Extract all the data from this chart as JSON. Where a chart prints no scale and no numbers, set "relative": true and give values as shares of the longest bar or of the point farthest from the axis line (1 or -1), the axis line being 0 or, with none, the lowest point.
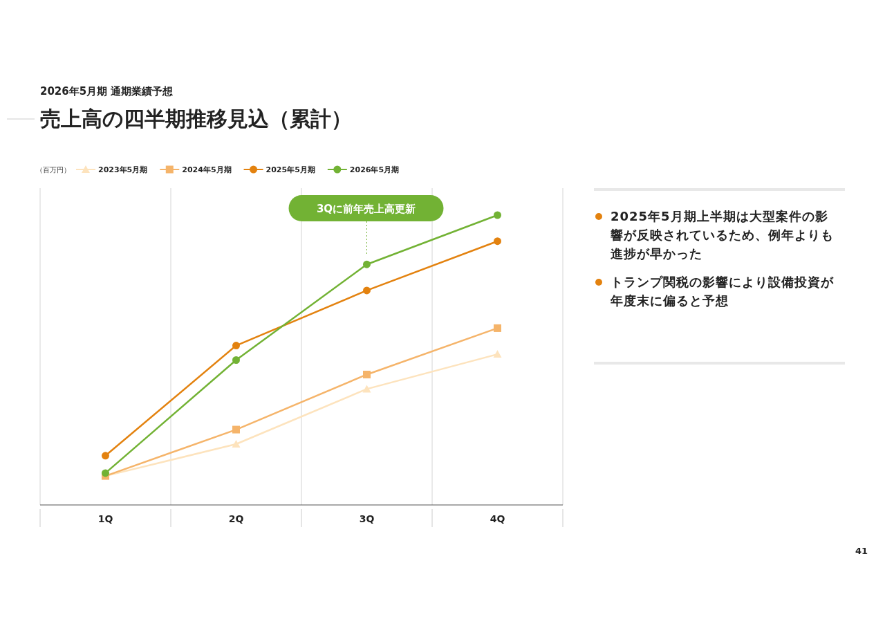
{
  "chart_data": {
    "type": "line",
    "subtitle": "2026年5月期 通期業績予想",
    "title": "売上高の四半期推移見込（累計）",
    "relative": true,
    "categories": [
      "1Q",
      "2Q",
      "3Q",
      "4Q"
    ],
    "series": [
      {
        "name": "2023年5月期",
        "color": "#fde3bd",
        "marker": "triangle",
        "values": [
          0.1,
          0.21,
          0.4,
          0.52
        ]
      },
      {
        "name": "2024年5月期",
        "color": "#f5b46a",
        "marker": "square",
        "values": [
          0.1,
          0.26,
          0.45,
          0.61
        ]
      },
      {
        "name": "2025年5月期",
        "color": "#e3820f",
        "marker": "circle",
        "values": [
          0.17,
          0.55,
          0.74,
          0.91
        ]
      },
      {
        "name": "2026年5月期",
        "color": "#72b234",
        "marker": "circle",
        "values": [
          0.11,
          0.5,
          0.83,
          1
        ]
      }
    ],
    "grid": "x",
    "legend": "top left",
    "line_style": "solid",
    "annotations": [
      "（百万円）",
      "3Qに前年売上高更新",
      "2025年5月期上半期は大型案件の影響が反映されているため、例年よりも進捗が早かった",
      "トランプ関税の影響により設備投資が年度末に偏ると予想",
      "41"
    ]
  }
}
